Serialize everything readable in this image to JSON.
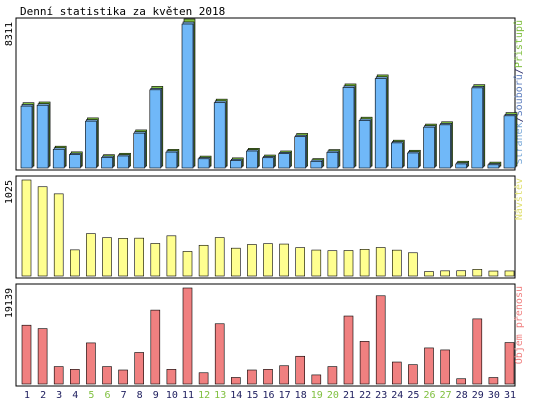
{
  "chart_data": {
    "title": "Denní statistika za květen 2018",
    "type": "bar",
    "x": [
      "1",
      "2",
      "3",
      "4",
      "5",
      "6",
      "7",
      "8",
      "9",
      "10",
      "11",
      "12",
      "13",
      "14",
      "15",
      "16",
      "17",
      "18",
      "19",
      "20",
      "21",
      "22",
      "23",
      "24",
      "25",
      "26",
      "27",
      "28",
      "29",
      "30",
      "31"
    ],
    "weekend_days": [
      "5",
      "6",
      "12",
      "13",
      "19",
      "20",
      "26",
      "27"
    ],
    "colors": {
      "pristupu": "#80c040",
      "souboru": "#78a8d8",
      "stranek": "#70b8f8",
      "navstev": "#ffff90",
      "objem": "#f08080",
      "weekday_label": "#202060",
      "weekend_label": "#80c040"
    },
    "panels": [
      {
        "ymax_label": "8311",
        "ymax": 8311,
        "label_parts": [
          {
            "text": "Stránek",
            "color": "#78a8d8"
          },
          {
            "text": "/",
            "color": "#202060"
          },
          {
            "text": "Souborů",
            "color": "#6080c0"
          },
          {
            "text": "/",
            "color": "#202060"
          },
          {
            "text": "Přístupů",
            "color": "#80c040"
          }
        ],
        "series": [
          {
            "name": "Přístupů",
            "values": [
              3580,
              3620,
              1120,
              800,
              2720,
              640,
              720,
              2040,
              4500,
              940,
              8311,
              560,
              3780,
              460,
              1000,
              620,
              850,
              1840,
              420,
              930,
              4640,
              2760,
              5150,
              1460,
              890,
              2370,
              2500,
              270,
              4600,
              220,
              3020
            ]
          },
          {
            "name": "Souborů",
            "values": [
              3540,
              3580,
              1090,
              780,
              2680,
              620,
              700,
              2000,
              4450,
              920,
              8200,
              540,
              3740,
              440,
              980,
              600,
              830,
              1800,
              400,
              910,
              4590,
              2720,
              5100,
              1440,
              870,
              2340,
              2470,
              250,
              4560,
              200,
              2980
            ]
          },
          {
            "name": "Stránek",
            "values": [
              3500,
              3550,
              1060,
              760,
              2650,
              600,
              680,
              1970,
              4420,
              900,
              8140,
              520,
              3700,
              420,
              960,
              580,
              810,
              1770,
              380,
              890,
              4560,
              2690,
              5060,
              1420,
              850,
              2310,
              2440,
              230,
              4530,
              180,
              2950
            ]
          }
        ]
      },
      {
        "ymax_label": "1025",
        "ymax": 1025,
        "label_parts": [
          {
            "text": "Návštěv",
            "color": "#e0e070"
          }
        ],
        "series": [
          {
            "name": "Návštěv",
            "values": [
              1025,
              953,
              877,
              279,
              452,
              409,
              402,
              404,
              347,
              429,
              262,
              328,
              410,
              297,
              336,
              345,
              341,
              303,
              277,
              270,
              272,
              285,
              304,
              276,
              248,
              47,
              55,
              56,
              71,
              53,
              54
            ]
          }
        ]
      },
      {
        "ymax_label": "19139",
        "ymax": 19139,
        "label_parts": [
          {
            "text": "Objem přenosu",
            "color": "#f08080"
          }
        ],
        "series": [
          {
            "name": "Objem přenosu",
            "values": [
              11720,
              11040,
              3470,
              2920,
              8190,
              3470,
              2790,
              6280,
              14730,
              2920,
              19139,
              2240,
              12010,
              1300,
              2790,
              2920,
              3640,
              5530,
              1810,
              3470,
              13550,
              8500,
              17590,
              4380,
              3850,
              7190,
              6790,
              1050,
              12980,
              1290,
              8260
            ]
          }
        ]
      }
    ]
  }
}
